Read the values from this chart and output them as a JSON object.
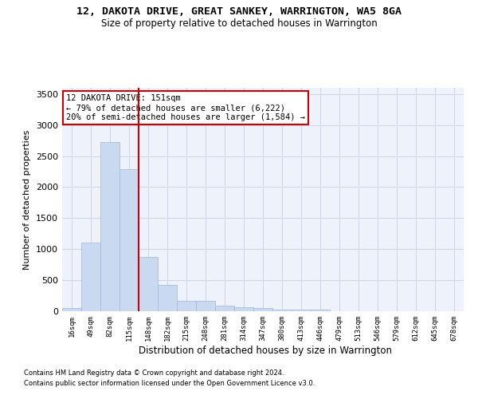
{
  "title": "12, DAKOTA DRIVE, GREAT SANKEY, WARRINGTON, WA5 8GA",
  "subtitle": "Size of property relative to detached houses in Warrington",
  "xlabel": "Distribution of detached houses by size in Warrington",
  "ylabel": "Number of detached properties",
  "bar_labels": [
    "16sqm",
    "49sqm",
    "82sqm",
    "115sqm",
    "148sqm",
    "182sqm",
    "215sqm",
    "248sqm",
    "281sqm",
    "314sqm",
    "347sqm",
    "380sqm",
    "413sqm",
    "446sqm",
    "479sqm",
    "513sqm",
    "546sqm",
    "579sqm",
    "612sqm",
    "645sqm",
    "678sqm"
  ],
  "bar_values": [
    50,
    1100,
    2730,
    2290,
    880,
    430,
    170,
    170,
    90,
    60,
    50,
    30,
    30,
    20,
    0,
    0,
    0,
    0,
    0,
    0,
    0
  ],
  "bar_color": "#c9d9f0",
  "bar_edgecolor": "#a0b8d8",
  "ylim": [
    0,
    3600
  ],
  "vline_index": 3.5,
  "vline_color": "#cc0000",
  "annotation_text": "12 DAKOTA DRIVE: 151sqm\n← 79% of detached houses are smaller (6,222)\n20% of semi-detached houses are larger (1,584) →",
  "annotation_box_color": "#cc0000",
  "grid_color": "#d0d8e8",
  "background_color": "#eef2fa",
  "footer_line1": "Contains HM Land Registry data © Crown copyright and database right 2024.",
  "footer_line2": "Contains public sector information licensed under the Open Government Licence v3.0."
}
